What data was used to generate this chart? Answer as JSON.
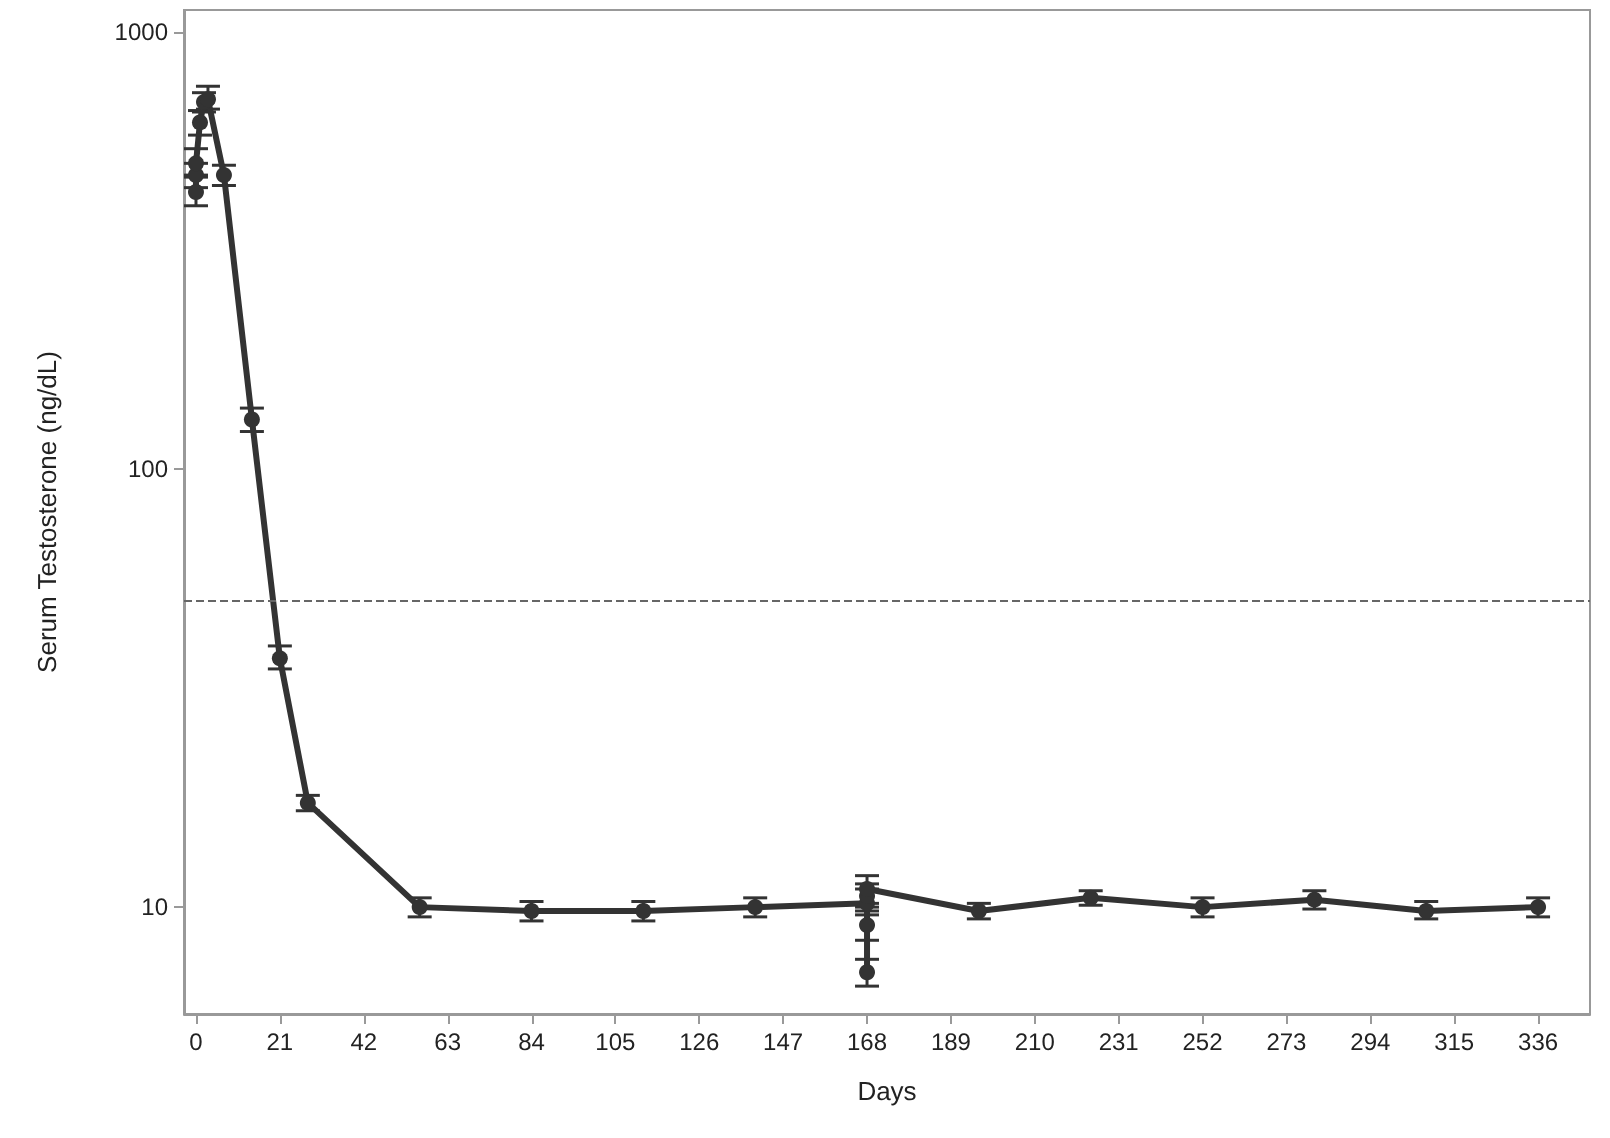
{
  "chart_data": {
    "type": "line",
    "xlabel": "Days",
    "ylabel": "Serum Testosterone (ng/dL)",
    "x": [
      0,
      0,
      0,
      1,
      2,
      3,
      7,
      14,
      21,
      28,
      56,
      84,
      112,
      140,
      168,
      168,
      168,
      168,
      168,
      196,
      224,
      252,
      280,
      308,
      336
    ],
    "series": [
      {
        "color": "#333333",
        "values": [
          430,
          470,
          500,
          620,
          690,
          700,
          470,
          130,
          37,
          17.3,
          10,
          9.8,
          9.8,
          10,
          10.2,
          9.1,
          7.1,
          10.6,
          11,
          9.8,
          10.5,
          10,
          10.4,
          9.8,
          10
        ],
        "errors": [
          [
            400,
            465
          ],
          [
            440,
            500
          ],
          [
            470,
            540
          ],
          [
            580,
            660
          ],
          [
            655,
            725
          ],
          [
            665,
            750
          ],
          [
            445,
            495
          ],
          [
            122,
            138
          ],
          [
            35,
            39.5
          ],
          [
            16.6,
            18
          ],
          [
            9.5,
            10.5
          ],
          [
            9.3,
            10.3
          ],
          [
            9.3,
            10.3
          ],
          [
            9.5,
            10.5
          ],
          [
            9.6,
            10.2
          ],
          [
            8.4,
            9.8
          ],
          [
            6.6,
            7.6
          ],
          [
            10,
            11.3
          ],
          [
            11,
            11.8
          ],
          [
            9.4,
            10.2
          ],
          [
            10.1,
            10.9
          ],
          [
            9.5,
            10.5
          ],
          [
            9.9,
            10.9
          ],
          [
            9.4,
            10.3
          ],
          [
            9.5,
            10.5
          ]
        ]
      }
    ],
    "xlim": [
      -3,
      349
    ],
    "xticks": [
      0,
      21,
      42,
      63,
      84,
      105,
      126,
      147,
      168,
      189,
      210,
      231,
      252,
      273,
      294,
      315,
      336
    ],
    "ylim": [
      5.7,
      1120
    ],
    "yticks": [
      10,
      100,
      1000
    ],
    "log": "y",
    "grid": false,
    "marker": "circle",
    "line_style": "solid",
    "ref_lines": [
      {
        "axis": "y",
        "value": 50,
        "color": "#666666",
        "line_style": "dashed"
      }
    ]
  }
}
